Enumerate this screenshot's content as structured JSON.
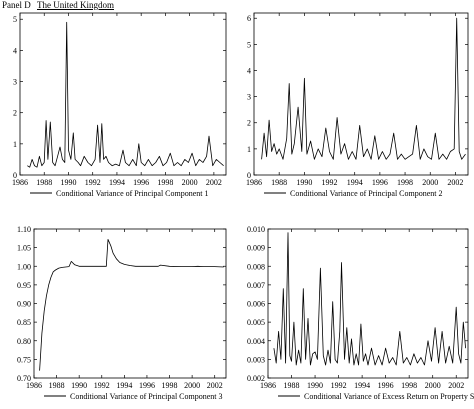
{
  "header": {
    "panel": "Panel D",
    "country": "The United Kingdom"
  },
  "chart_data": [
    {
      "type": "line",
      "legend": "Conditional Variance of Principal Component 1",
      "legend_placement": "bottom",
      "xlim": [
        1986,
        2003
      ],
      "ylim": [
        0,
        5.2
      ],
      "x_ticks": [
        1986,
        1988,
        1990,
        1992,
        1994,
        1996,
        1998,
        2000,
        2002
      ],
      "y_ticks": [
        0,
        1,
        2,
        3,
        4,
        5
      ],
      "x": [
        1986.6,
        1986.8,
        1987.0,
        1987.2,
        1987.4,
        1987.6,
        1987.8,
        1988.0,
        1988.15,
        1988.3,
        1988.5,
        1988.7,
        1988.9,
        1989.1,
        1989.3,
        1989.5,
        1989.7,
        1989.85,
        1990.0,
        1990.2,
        1990.4,
        1990.55,
        1990.8,
        1991.0,
        1991.3,
        1991.6,
        1991.9,
        1992.2,
        1992.4,
        1992.6,
        1992.75,
        1992.9,
        1993.1,
        1993.3,
        1993.6,
        1993.9,
        1994.2,
        1994.5,
        1994.7,
        1995.0,
        1995.3,
        1995.6,
        1995.8,
        1996.0,
        1996.3,
        1996.6,
        1996.9,
        1997.2,
        1997.5,
        1997.8,
        1998.1,
        1998.4,
        1998.7,
        1999.0,
        1999.3,
        1999.6,
        1999.9,
        2000.2,
        2000.5,
        2000.8,
        2001.1,
        2001.4,
        2001.6,
        2001.9,
        2002.2,
        2002.5,
        2002.8
      ],
      "y": [
        0.3,
        0.25,
        0.5,
        0.3,
        0.25,
        0.6,
        0.3,
        0.4,
        1.75,
        0.5,
        1.7,
        0.4,
        0.3,
        0.6,
        0.9,
        0.5,
        0.4,
        4.9,
        0.8,
        0.5,
        1.35,
        0.5,
        0.4,
        0.3,
        0.6,
        0.4,
        0.3,
        0.5,
        1.6,
        0.4,
        1.65,
        0.5,
        0.6,
        0.4,
        0.3,
        0.35,
        0.3,
        0.8,
        0.4,
        0.3,
        0.5,
        0.3,
        1.0,
        0.4,
        0.3,
        0.5,
        0.3,
        0.4,
        0.6,
        0.3,
        0.4,
        0.7,
        0.3,
        0.4,
        0.3,
        0.5,
        0.4,
        0.7,
        0.3,
        0.5,
        0.4,
        0.6,
        1.25,
        0.3,
        0.5,
        0.4,
        0.3
      ]
    },
    {
      "type": "line",
      "legend": "Conditional Variance of Principal Component 2",
      "legend_placement": "bottom",
      "xlim": [
        1986,
        2003
      ],
      "ylim": [
        0,
        6.2
      ],
      "x_ticks": [
        1986,
        1988,
        1990,
        1992,
        1994,
        1996,
        1998,
        2000,
        2002
      ],
      "y_ticks": [
        0,
        1,
        2,
        3,
        4,
        5,
        6
      ],
      "x": [
        1986.6,
        1986.8,
        1987.0,
        1987.2,
        1987.4,
        1987.6,
        1987.8,
        1988.0,
        1988.3,
        1988.6,
        1988.8,
        1989.0,
        1989.2,
        1989.5,
        1989.8,
        1990.0,
        1990.2,
        1990.5,
        1990.8,
        1991.1,
        1991.4,
        1991.7,
        1992.0,
        1992.3,
        1992.6,
        1992.9,
        1993.2,
        1993.5,
        1993.8,
        1994.1,
        1994.4,
        1994.7,
        1995.0,
        1995.3,
        1995.6,
        1995.9,
        1996.2,
        1996.5,
        1996.8,
        1997.1,
        1997.4,
        1997.7,
        1998.0,
        1998.3,
        1998.6,
        1998.9,
        1999.2,
        1999.5,
        1999.8,
        2000.1,
        2000.4,
        2000.7,
        2001.0,
        2001.3,
        2001.6,
        2001.9,
        2002.1,
        2002.3,
        2002.5,
        2002.8
      ],
      "y": [
        0.6,
        1.6,
        0.7,
        2.1,
        0.9,
        1.2,
        0.8,
        1.0,
        0.6,
        1.4,
        3.5,
        0.8,
        1.2,
        2.6,
        0.9,
        3.7,
        0.8,
        1.3,
        0.6,
        1.0,
        0.7,
        1.8,
        0.9,
        0.6,
        2.2,
        0.8,
        1.2,
        0.6,
        0.9,
        0.6,
        1.9,
        0.7,
        1.0,
        0.6,
        1.5,
        0.6,
        0.9,
        0.6,
        0.8,
        1.6,
        0.6,
        0.8,
        0.6,
        0.7,
        0.8,
        1.9,
        0.6,
        1.0,
        0.7,
        0.6,
        1.6,
        0.6,
        0.8,
        0.6,
        0.9,
        1.0,
        6.0,
        0.9,
        0.6,
        0.8
      ]
    },
    {
      "type": "line",
      "legend": "Conditional Variance of Principal Component 3",
      "legend_placement": "bottom",
      "xlim": [
        1986,
        2003
      ],
      "ylim": [
        0.7,
        1.1
      ],
      "x_ticks": [
        1986,
        1988,
        1990,
        1992,
        1994,
        1996,
        1998,
        2000,
        2002
      ],
      "y_ticks": [
        0.7,
        0.75,
        0.8,
        0.85,
        0.9,
        0.95,
        1.0,
        1.05,
        1.1
      ],
      "x": [
        1986.5,
        1986.7,
        1986.9,
        1987.1,
        1987.3,
        1987.5,
        1987.7,
        1987.9,
        1988.2,
        1988.5,
        1988.8,
        1989.1,
        1989.3,
        1989.6,
        1990.0,
        1990.5,
        1991.0,
        1991.5,
        1992.0,
        1992.4,
        1992.55,
        1992.8,
        1993.0,
        1993.3,
        1993.6,
        1994.0,
        1994.5,
        1995.0,
        1996.0,
        1997.0,
        1997.2,
        1998.0,
        1999.0,
        2000.0,
        2000.5,
        2001.0,
        2002.0,
        2002.8
      ],
      "y": [
        0.72,
        0.82,
        0.88,
        0.92,
        0.95,
        0.97,
        0.985,
        0.99,
        0.995,
        0.997,
        0.998,
        0.999,
        1.013,
        1.004,
        1.0,
        1.0,
        1.0,
        1.0,
        1.0,
        1.0,
        1.072,
        1.055,
        1.035,
        1.02,
        1.01,
        1.005,
        1.002,
        1.0,
        1.0,
        1.0,
        1.003,
        1.0,
        0.999,
        0.999,
        1.0,
        0.999,
        0.999,
        0.998
      ]
    },
    {
      "type": "line",
      "legend": "Conditional Variance of Excess Return on Property Stocks",
      "legend_placement": "bottom",
      "xlim": [
        1986,
        2003
      ],
      "ylim": [
        0.002,
        0.01
      ],
      "x_ticks": [
        1986,
        1988,
        1990,
        1992,
        1994,
        1996,
        1998,
        2000,
        2002
      ],
      "y_ticks": [
        0.002,
        0.003,
        0.004,
        0.005,
        0.006,
        0.007,
        0.008,
        0.009,
        0.01
      ],
      "x": [
        1986.5,
        1986.7,
        1986.9,
        1987.1,
        1987.3,
        1987.5,
        1987.7,
        1987.85,
        1988.0,
        1988.2,
        1988.4,
        1988.6,
        1988.8,
        1989.0,
        1989.2,
        1989.4,
        1989.6,
        1989.8,
        1990.0,
        1990.2,
        1990.45,
        1990.7,
        1990.9,
        1991.1,
        1991.3,
        1991.5,
        1991.7,
        1991.9,
        1992.1,
        1992.25,
        1992.5,
        1992.7,
        1992.9,
        1993.1,
        1993.3,
        1993.5,
        1993.7,
        1993.9,
        1994.1,
        1994.3,
        1994.5,
        1994.8,
        1995.1,
        1995.4,
        1995.7,
        1996.0,
        1996.3,
        1996.6,
        1996.9,
        1997.2,
        1997.5,
        1997.8,
        1998.1,
        1998.4,
        1998.7,
        1999.0,
        1999.3,
        1999.6,
        1999.9,
        2000.2,
        2000.5,
        2000.8,
        2001.1,
        2001.4,
        2001.7,
        2002.0,
        2002.2,
        2002.4,
        2002.6,
        2002.8
      ],
      "y": [
        0.0036,
        0.0028,
        0.0045,
        0.003,
        0.0068,
        0.0028,
        0.0098,
        0.0032,
        0.0029,
        0.005,
        0.0027,
        0.0035,
        0.0028,
        0.0068,
        0.003,
        0.0052,
        0.0027,
        0.0033,
        0.0034,
        0.003,
        0.0079,
        0.0032,
        0.0027,
        0.0035,
        0.0028,
        0.0061,
        0.003,
        0.0028,
        0.0045,
        0.0082,
        0.003,
        0.0047,
        0.0028,
        0.0041,
        0.0027,
        0.0033,
        0.0027,
        0.0049,
        0.0029,
        0.0033,
        0.0027,
        0.0036,
        0.0027,
        0.0032,
        0.0027,
        0.0036,
        0.0028,
        0.0031,
        0.0027,
        0.0045,
        0.0028,
        0.0031,
        0.0027,
        0.0033,
        0.0028,
        0.0031,
        0.0027,
        0.004,
        0.0029,
        0.0047,
        0.0028,
        0.0045,
        0.0028,
        0.0037,
        0.0028,
        0.0058,
        0.0033,
        0.0028,
        0.005,
        0.0036
      ]
    }
  ]
}
